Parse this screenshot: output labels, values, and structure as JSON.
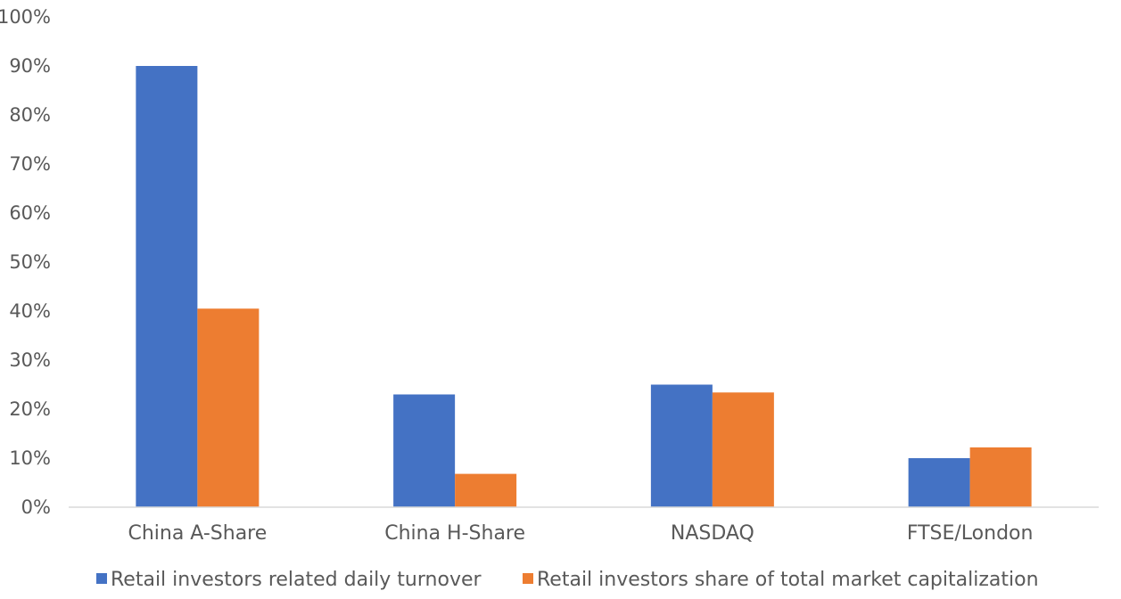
{
  "chart_data": {
    "type": "bar",
    "categories": [
      "China A-Share",
      "China H-Share",
      "NASDAQ",
      "FTSE/London"
    ],
    "series": [
      {
        "name": "Retail investors related daily turnover",
        "values": [
          90,
          23,
          25,
          10
        ],
        "color": "#4472C4"
      },
      {
        "name": "Retail investors share of total market capitalization",
        "values": [
          40.5,
          6.8,
          23.4,
          12.2
        ],
        "color": "#ED7D31"
      }
    ],
    "yticks": [
      "0%",
      "10%",
      "20%",
      "30%",
      "40%",
      "50%",
      "60%",
      "70%",
      "80%",
      "90%",
      "100%"
    ],
    "ylim": [
      0,
      100
    ],
    "grid": false,
    "legend_position": "bottom"
  }
}
